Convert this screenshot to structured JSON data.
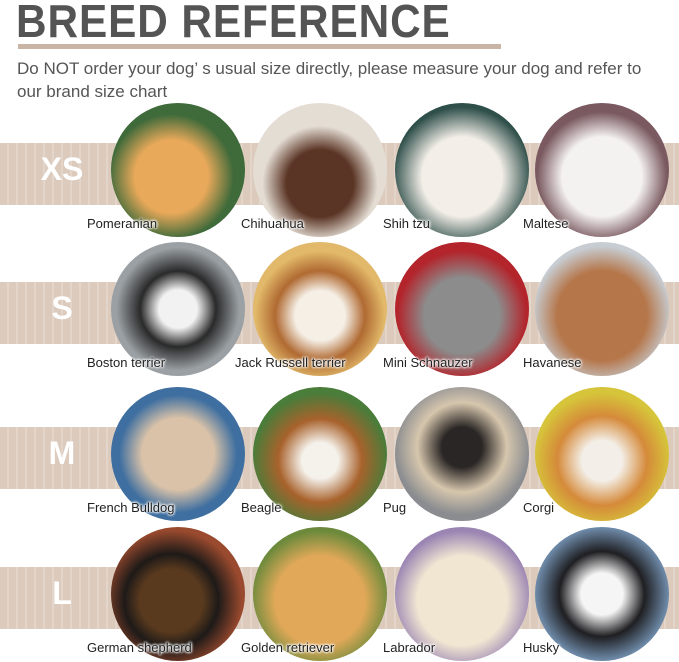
{
  "header": {
    "title": "BREED REFERENCE",
    "subtitle": "Do NOT order your dog’ s usual size directly, please measure your dog and refer to our brand size chart"
  },
  "rows": [
    {
      "size": "XS",
      "breeds": [
        {
          "name": "Pomeranian"
        },
        {
          "name": "Chihuahua"
        },
        {
          "name": "Shih tzu"
        },
        {
          "name": "Maltese"
        }
      ]
    },
    {
      "size": "S",
      "breeds": [
        {
          "name": "Boston terrier"
        },
        {
          "name": "Jack Russell terrier"
        },
        {
          "name": "Mini Schnauzer"
        },
        {
          "name": "Havanese"
        }
      ]
    },
    {
      "size": "M",
      "breeds": [
        {
          "name": "French Bulldog"
        },
        {
          "name": "Beagle"
        },
        {
          "name": "Pug"
        },
        {
          "name": "Corgi"
        }
      ]
    },
    {
      "size": "L",
      "breeds": [
        {
          "name": "German shepherd"
        },
        {
          "name": "Golden retriever"
        },
        {
          "name": "Labrador"
        },
        {
          "name": "Husky"
        }
      ]
    }
  ],
  "colors": {
    "accent": "#c9b5a5",
    "band": "#dccbbd",
    "text": "#545454"
  }
}
